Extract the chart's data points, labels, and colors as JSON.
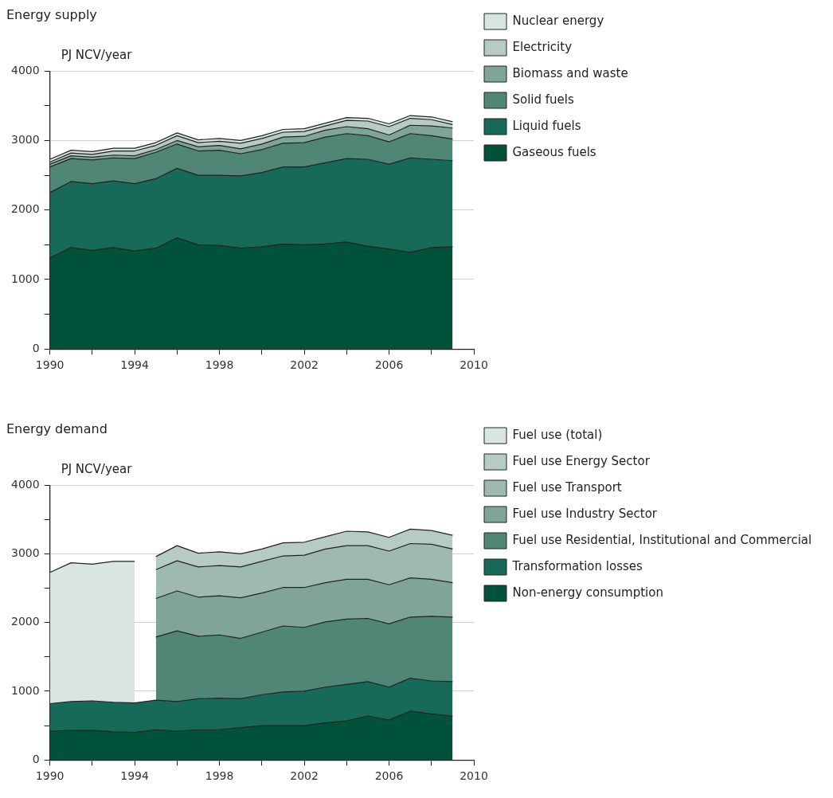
{
  "chart_data": [
    {
      "type": "area",
      "title": "Energy supply",
      "ylabel": "PJ NCV/year",
      "stacked": true,
      "legend": "right",
      "grid": "y",
      "x": [
        1990,
        1991,
        1992,
        1993,
        1994,
        1995,
        1996,
        1997,
        1998,
        1999,
        2000,
        2001,
        2002,
        2003,
        2004,
        2005,
        2006,
        2007,
        2008,
        2009
      ],
      "xlim": [
        1990,
        2010
      ],
      "xticks": [
        1990,
        {
          "value": 1992,
          "label": null
        },
        1994,
        {
          "value": 1996,
          "label": null
        },
        1998,
        {
          "value": 2000,
          "label": null
        },
        2002,
        {
          "value": 2004,
          "label": null
        },
        2006,
        {
          "value": 2008,
          "label": null
        },
        2010
      ],
      "ylim": [
        0,
        4000
      ],
      "yticks": [
        0,
        {
          "value": 500,
          "label": null
        },
        1000,
        {
          "value": 1500,
          "label": null
        },
        2000,
        {
          "value": 2500,
          "label": null
        },
        3000,
        {
          "value": 3500,
          "label": null
        },
        4000
      ],
      "series": [
        {
          "name": "Gaseous fuels",
          "color": "#00523b",
          "values": [
            1310,
            1460,
            1420,
            1460,
            1410,
            1450,
            1600,
            1500,
            1490,
            1450,
            1470,
            1510,
            1500,
            1510,
            1540,
            1480,
            1440,
            1390,
            1460,
            1470
          ]
        },
        {
          "name": "Liquid fuels",
          "color": "#186a58",
          "values": [
            940,
            950,
            960,
            960,
            970,
            1000,
            1000,
            1000,
            1010,
            1040,
            1070,
            1110,
            1120,
            1170,
            1200,
            1250,
            1220,
            1360,
            1270,
            1240
          ]
        },
        {
          "name": "Solid fuels",
          "color": "#4f8676",
          "values": [
            370,
            330,
            340,
            330,
            360,
            380,
            350,
            350,
            360,
            320,
            330,
            340,
            350,
            370,
            360,
            340,
            320,
            350,
            340,
            310
          ]
        },
        {
          "name": "Biomass and waste",
          "color": "#7fa598",
          "values": [
            40,
            40,
            40,
            40,
            40,
            40,
            50,
            60,
            70,
            70,
            80,
            90,
            90,
            100,
            100,
            100,
            100,
            120,
            140,
            160
          ]
        },
        {
          "name": "Electricity",
          "color": "#b5cbc3",
          "values": [
            30,
            40,
            40,
            60,
            70,
            60,
            70,
            60,
            60,
            80,
            80,
            70,
            70,
            60,
            90,
            110,
            120,
            100,
            90,
            50
          ]
        },
        {
          "name": "Nuclear energy",
          "color": "#d7e5e1",
          "values": [
            40,
            40,
            40,
            40,
            40,
            40,
            40,
            40,
            40,
            40,
            40,
            40,
            40,
            40,
            40,
            40,
            40,
            40,
            40,
            40
          ]
        }
      ]
    },
    {
      "type": "area",
      "title": "Energy demand",
      "ylabel": "PJ NCV/year",
      "stacked": true,
      "legend": "right",
      "grid": "y",
      "x": [
        1990,
        1991,
        1992,
        1993,
        1994,
        1995,
        1996,
        1997,
        1998,
        1999,
        2000,
        2001,
        2002,
        2003,
        2004,
        2005,
        2006,
        2007,
        2008,
        2009
      ],
      "xlim": [
        1990,
        2010
      ],
      "xticks": [
        1990,
        {
          "value": 1992,
          "label": null
        },
        1994,
        {
          "value": 1996,
          "label": null
        },
        1998,
        {
          "value": 2000,
          "label": null
        },
        2002,
        {
          "value": 2004,
          "label": null
        },
        2006,
        {
          "value": 2008,
          "label": null
        },
        2010
      ],
      "ylim": [
        0,
        4000
      ],
      "yticks": [
        0,
        {
          "value": 500,
          "label": null
        },
        1000,
        {
          "value": 1500,
          "label": null
        },
        2000,
        {
          "value": 2500,
          "label": null
        },
        3000,
        {
          "value": 3500,
          "label": null
        },
        4000
      ],
      "series": [
        {
          "name": "Non-energy consumption",
          "color": "#00523b",
          "values": [
            420,
            430,
            430,
            410,
            400,
            440,
            420,
            440,
            440,
            470,
            500,
            500,
            500,
            540,
            570,
            640,
            580,
            710,
            670,
            640
          ]
        },
        {
          "name": "Transformation losses",
          "color": "#186a58",
          "values": [
            400,
            420,
            430,
            430,
            430,
            430,
            430,
            450,
            460,
            420,
            450,
            490,
            500,
            520,
            530,
            500,
            480,
            480,
            480,
            500
          ]
        },
        {
          "name": "Fuel use Residential, Institutional and Commercial",
          "color": "#4f8676",
          "values": [
            null,
            null,
            null,
            null,
            null,
            920,
            1030,
            910,
            920,
            880,
            910,
            960,
            930,
            950,
            950,
            920,
            920,
            890,
            940,
            940
          ]
        },
        {
          "name": "Fuel use Industry Sector",
          "color": "#80a598",
          "values": [
            null,
            null,
            null,
            null,
            null,
            560,
            580,
            570,
            570,
            590,
            570,
            560,
            580,
            570,
            580,
            570,
            570,
            570,
            540,
            500
          ]
        },
        {
          "name": "Fuel use Transport",
          "color": "#9db9b0",
          "values": [
            null,
            null,
            null,
            null,
            null,
            420,
            440,
            440,
            440,
            450,
            460,
            460,
            470,
            490,
            490,
            490,
            490,
            500,
            510,
            490
          ]
        },
        {
          "name": "Fuel use Energy Sector",
          "color": "#b6cbc3",
          "values": [
            null,
            null,
            null,
            null,
            null,
            190,
            220,
            200,
            200,
            190,
            180,
            190,
            190,
            180,
            210,
            200,
            200,
            210,
            200,
            200
          ]
        },
        {
          "name": "Fuel use (total)",
          "color": "#d8e5e2",
          "values": [
            1910,
            2020,
            1990,
            2050,
            2060,
            null,
            null,
            null,
            null,
            null,
            null,
            null,
            null,
            null,
            null,
            null,
            null,
            null,
            null,
            null
          ]
        }
      ]
    }
  ]
}
